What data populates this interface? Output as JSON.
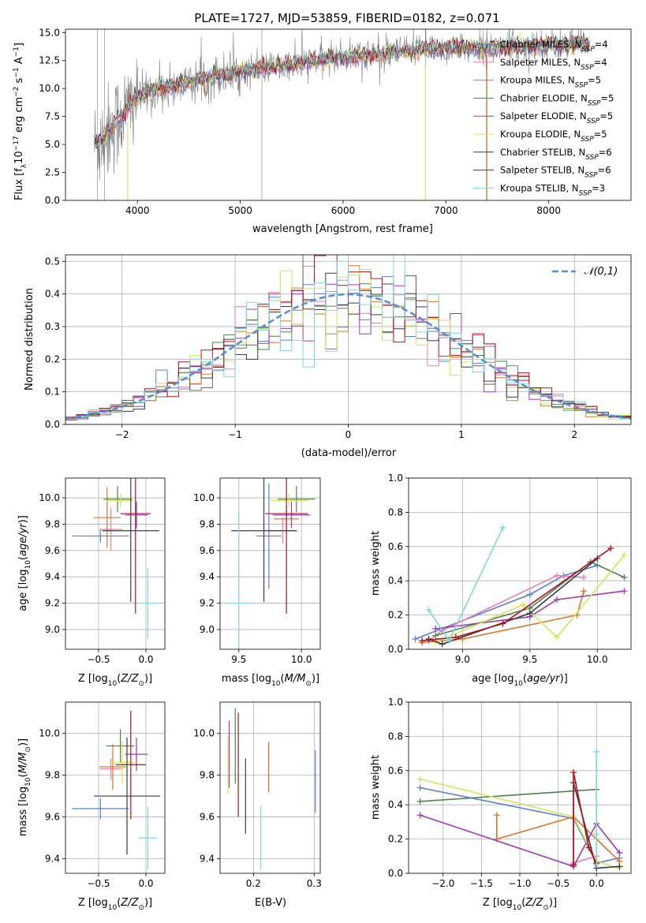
{
  "title": "PLATE=1727, MJD=53859, FIBERID=0182, z=0.071",
  "models": [
    {
      "name": "Chabrier MILES",
      "nssp": "4",
      "color": "#5b7fd4"
    },
    {
      "name": "Salpeter MILES",
      "nssp": "4",
      "color": "#e67fb0"
    },
    {
      "name": "Kroupa MILES",
      "nssp": "5",
      "color": "#e0742a"
    },
    {
      "name": "Chabrier ELODIE",
      "nssp": "5",
      "color": "#4f7f4f"
    },
    {
      "name": "Salpeter ELODIE",
      "nssp": "5",
      "color": "#9b3bb5"
    },
    {
      "name": "Kroupa ELODIE",
      "nssp": "5",
      "color": "#cfe55a"
    },
    {
      "name": "Chabrier STELIB",
      "nssp": "6",
      "color": "#3c3c3c"
    },
    {
      "name": "Salpeter STELIB",
      "nssp": "6",
      "color": "#b0131e"
    },
    {
      "name": "Kroupa STELIB",
      "nssp": "3",
      "color": "#7fd6dc"
    }
  ],
  "chart_data": [
    {
      "id": "spectrum",
      "type": "line",
      "xlabel": "wavelength [Angstrom, rest frame]",
      "ylabel": "Flux [f",
      "xlim": [
        3300,
        8800
      ],
      "ylim": [
        0,
        15.3
      ],
      "xticks": [
        4000,
        5000,
        6000,
        7000,
        8000
      ],
      "yticks": [
        0.0,
        2.5,
        5.0,
        7.5,
        10.0,
        12.5,
        15.0
      ],
      "data_color": "#808080",
      "continuum": [
        [
          3600,
          5.0
        ],
        [
          3800,
          7.0
        ],
        [
          4000,
          9.3
        ],
        [
          4200,
          10.0
        ],
        [
          4400,
          10.3
        ],
        [
          4600,
          10.8
        ],
        [
          4800,
          11.2
        ],
        [
          5000,
          11.5
        ],
        [
          5200,
          11.8
        ],
        [
          5400,
          12.0
        ],
        [
          5600,
          12.3
        ],
        [
          5800,
          12.6
        ],
        [
          6000,
          12.8
        ],
        [
          6200,
          13.0
        ],
        [
          6400,
          13.1
        ],
        [
          6600,
          13.3
        ],
        [
          6800,
          13.5
        ],
        [
          7000,
          13.6
        ],
        [
          7200,
          13.7
        ],
        [
          7400,
          13.6
        ],
        [
          7600,
          13.7
        ],
        [
          7800,
          13.8
        ],
        [
          8000,
          13.9
        ],
        [
          8200,
          14.0
        ],
        [
          8400,
          14.0
        ]
      ],
      "grid": false,
      "legend": "upper right"
    },
    {
      "id": "residuals",
      "type": "histogram",
      "xlabel": "(data-model)/error",
      "ylabel": "Normed distribution",
      "xlim": [
        -2.5,
        2.5
      ],
      "ylim": [
        0,
        0.52
      ],
      "xticks": [
        -2,
        -1,
        0,
        1,
        2
      ],
      "yticks": [
        0.0,
        0.1,
        0.2,
        0.3,
        0.4,
        0.5
      ],
      "bin_width": 0.1,
      "gaussian_label": "𝒩(0,1)",
      "grid": true,
      "legend": "upper right"
    },
    {
      "id": "age_vs_Z",
      "type": "errorbar",
      "xlabel": "Z [log",
      "ylabel": "age  [log",
      "xlim": [
        -0.85,
        0.2
      ],
      "ylim": [
        8.85,
        10.15
      ],
      "xticks": [
        -0.5,
        0.0
      ],
      "yticks": [
        9.0,
        9.2,
        9.4,
        9.6,
        9.8,
        10.0
      ],
      "points": [
        {
          "x": -0.48,
          "xerr": 0.3,
          "y": 9.71,
          "yerr": 0.05
        },
        {
          "x": -0.37,
          "xerr": 0.12,
          "y": 9.76,
          "yerr": 0.16
        },
        {
          "x": -0.41,
          "xerr": 0.14,
          "y": 9.85,
          "yerr": 0.23
        },
        {
          "x": -0.3,
          "xerr": 0.15,
          "y": 9.99,
          "yerr": 0.1
        },
        {
          "x": -0.1,
          "xerr": 0.12,
          "y": 9.87,
          "yerr": 0.1
        },
        {
          "x": -0.27,
          "xerr": 0.14,
          "y": 9.98,
          "yerr": 0.05
        },
        {
          "x": -0.16,
          "xerr": 0.3,
          "y": 9.75,
          "yerr": 0.54
        },
        {
          "x": -0.11,
          "xerr": 0.16,
          "y": 9.88,
          "yerr": 0.76
        },
        {
          "x": 0.02,
          "xerr": 0.12,
          "y": 9.2,
          "yerr": 0.27
        }
      ],
      "grid": true
    },
    {
      "id": "age_vs_mass",
      "type": "errorbar",
      "xlabel": "mass [log",
      "ylabel": "",
      "xlim": [
        9.35,
        10.15
      ],
      "ylim": [
        8.85,
        10.15
      ],
      "xticks": [
        9.5,
        10.0
      ],
      "yticks": [
        9.0,
        9.2,
        9.4,
        9.6,
        9.8,
        10.0
      ],
      "points": [
        {
          "x": 9.74,
          "xerr": 0.1,
          "y": 9.71,
          "yerr": 0.4
        },
        {
          "x": 9.85,
          "xerr": 0.12,
          "y": 9.75,
          "yerr": 0.1
        },
        {
          "x": 9.88,
          "xerr": 0.1,
          "y": 9.84,
          "yerr": 0.1
        },
        {
          "x": 9.96,
          "xerr": 0.15,
          "y": 9.99,
          "yerr": 0.1
        },
        {
          "x": 9.92,
          "xerr": 0.15,
          "y": 9.87,
          "yerr": 0.1
        },
        {
          "x": 9.9,
          "xerr": 0.15,
          "y": 9.98,
          "yerr": 0.05
        },
        {
          "x": 9.7,
          "xerr": 0.26,
          "y": 9.75,
          "yerr": 0.54
        },
        {
          "x": 9.88,
          "xerr": 0.17,
          "y": 9.88,
          "yerr": 0.76
        },
        {
          "x": 9.5,
          "xerr": 0.11,
          "y": 9.2,
          "yerr": 0.7
        }
      ],
      "grid": true
    },
    {
      "id": "weight_vs_age",
      "type": "line",
      "xlabel": "age  [log",
      "ylabel": "mass weight",
      "xlim": [
        8.6,
        10.25
      ],
      "ylim": [
        0,
        1
      ],
      "xticks": [
        9.0,
        9.5,
        10.0
      ],
      "yticks": [
        0.0,
        0.2,
        0.4,
        0.6,
        0.8,
        1.0
      ],
      "series": [
        {
          "x": [
            8.65,
            9.5,
            9.75,
            10.0
          ],
          "y": [
            0.06,
            0.32,
            0.43,
            0.49
          ]
        },
        {
          "x": [
            8.75,
            8.85,
            9.7,
            9.9
          ],
          "y": [
            0.05,
            0.11,
            0.43,
            0.42
          ]
        },
        {
          "x": [
            8.7,
            9.0,
            9.85,
            9.9
          ],
          "y": [
            0.04,
            0.06,
            0.2,
            0.34
          ]
        },
        {
          "x": [
            8.8,
            9.5,
            9.95,
            10.2
          ],
          "y": [
            0.08,
            0.24,
            0.51,
            0.42
          ]
        },
        {
          "x": [
            8.8,
            9.5,
            9.7,
            10.2
          ],
          "y": [
            0.12,
            0.19,
            0.29,
            0.34
          ]
        },
        {
          "x": [
            8.8,
            9.45,
            9.7,
            10.2
          ],
          "y": [
            0.04,
            0.26,
            0.07,
            0.55
          ]
        },
        {
          "x": [
            8.75,
            8.85,
            9.5,
            10.0
          ],
          "y": [
            0.06,
            0.03,
            0.21,
            0.53
          ]
        },
        {
          "x": [
            8.7,
            8.95,
            9.3,
            10.1
          ],
          "y": [
            0.05,
            0.07,
            0.15,
            0.59
          ]
        },
        {
          "x": [
            8.75,
            8.9,
            9.3
          ],
          "y": [
            0.23,
            0.05,
            0.71
          ]
        }
      ],
      "grid": true
    },
    {
      "id": "mass_vs_Z",
      "type": "errorbar",
      "xlabel": "Z [log",
      "ylabel": "mass [log",
      "xlim": [
        -0.85,
        0.2
      ],
      "ylim": [
        9.33,
        10.15
      ],
      "xticks": [
        -0.5,
        0.0
      ],
      "yticks": [
        9.4,
        9.6,
        9.8,
        10.0
      ],
      "points": [
        {
          "x": -0.48,
          "xerr": 0.3,
          "y": 9.64,
          "yerr": 0.05
        },
        {
          "x": -0.37,
          "xerr": 0.12,
          "y": 9.83,
          "yerr": 0.05
        },
        {
          "x": -0.35,
          "xerr": 0.14,
          "y": 9.84,
          "yerr": 0.11
        },
        {
          "x": -0.27,
          "xerr": 0.15,
          "y": 9.94,
          "yerr": 0.08
        },
        {
          "x": -0.1,
          "xerr": 0.12,
          "y": 9.9,
          "yerr": 0.08
        },
        {
          "x": -0.25,
          "xerr": 0.14,
          "y": 9.86,
          "yerr": 0.1
        },
        {
          "x": -0.2,
          "xerr": 0.35,
          "y": 9.7,
          "yerr": 0.28
        },
        {
          "x": -0.16,
          "xerr": 0.16,
          "y": 9.85,
          "yerr": 0.26
        },
        {
          "x": 0.02,
          "xerr": 0.1,
          "y": 9.5,
          "yerr": 0.15
        }
      ],
      "grid": true
    },
    {
      "id": "mass_vs_EBV",
      "type": "errorbar",
      "xlabel": "E(B-V)",
      "ylabel": "",
      "xlim": [
        0.145,
        0.31
      ],
      "ylim": [
        9.33,
        10.15
      ],
      "xticks": [
        0.2,
        0.3
      ],
      "yticks": [
        9.4,
        9.6,
        9.8,
        10.0
      ],
      "points": [
        {
          "x": 0.302,
          "xerr": 0,
          "y": 9.77,
          "yerr": 0.15
        },
        {
          "x": 0.225,
          "xerr": 0,
          "y": 9.84,
          "yerr": 0.12
        },
        {
          "x": 0.225,
          "xerr": 0,
          "y": 9.84,
          "yerr": 0.12
        },
        {
          "x": 0.17,
          "xerr": 0,
          "y": 9.94,
          "yerr": 0.18
        },
        {
          "x": 0.16,
          "xerr": 0,
          "y": 9.9,
          "yerr": 0.16
        },
        {
          "x": 0.158,
          "xerr": 0,
          "y": 9.85,
          "yerr": 0.14
        },
        {
          "x": 0.187,
          "xerr": 0,
          "y": 9.7,
          "yerr": 0.18
        },
        {
          "x": 0.175,
          "xerr": 0,
          "y": 9.85,
          "yerr": 0.25
        },
        {
          "x": 0.212,
          "xerr": 0,
          "y": 9.5,
          "yerr": 0.15
        }
      ],
      "grid": true
    },
    {
      "id": "weight_vs_Z",
      "type": "line",
      "xlabel": "Z [log",
      "ylabel": "mass weight",
      "xlim": [
        -2.45,
        0.45
      ],
      "ylim": [
        0,
        1
      ],
      "xticks": [
        -2.0,
        -1.5,
        -1.0,
        -0.5,
        0.0
      ],
      "yticks": [
        0.0,
        0.2,
        0.4,
        0.6,
        0.8,
        1.0
      ],
      "series": [
        {
          "x": [
            -2.3,
            -0.3,
            0.0,
            0.3
          ],
          "y": [
            0.5,
            0.32,
            0.06,
            0.09
          ]
        },
        {
          "x": [
            -0.3,
            -0.3,
            0.0
          ],
          "y": [
            0.05,
            0.06,
            0.1
          ]
        },
        {
          "x": [
            -1.3,
            -1.3,
            -0.3,
            0.3
          ],
          "y": [
            0.34,
            0.2,
            0.33,
            0.07
          ]
        },
        {
          "x": [
            -2.3,
            0.0
          ],
          "y": [
            0.42,
            0.49
          ]
        },
        {
          "x": [
            -2.3,
            -0.3,
            0.0,
            0.3
          ],
          "y": [
            0.34,
            0.04,
            0.29,
            0.12
          ]
        },
        {
          "x": [
            -2.3,
            -0.3,
            0.0,
            0.3
          ],
          "y": [
            0.55,
            0.33,
            0.07,
            0.03
          ]
        },
        {
          "x": [
            -0.3,
            -0.3,
            0.0,
            0.3
          ],
          "y": [
            0.05,
            0.53,
            0.03,
            0.04
          ]
        },
        {
          "x": [
            -0.3,
            -0.3,
            -0.1,
            0.0
          ],
          "y": [
            0.05,
            0.59,
            0.15,
            0.06
          ]
        },
        {
          "x": [
            0.0,
            0.0,
            0.0
          ],
          "y": [
            0.23,
            0.71,
            0.05
          ]
        }
      ],
      "grid": true
    }
  ]
}
